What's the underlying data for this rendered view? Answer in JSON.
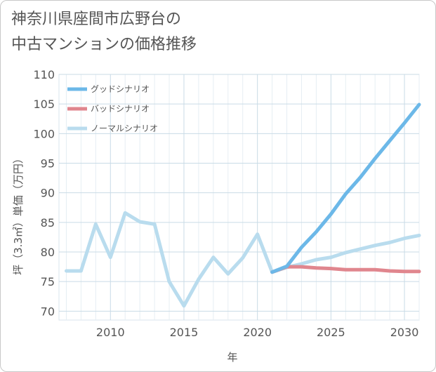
{
  "title_line1": "神奈川県座間市広野台の",
  "title_line2": "中古マンションの価格推移",
  "chart_data": {
    "type": "line",
    "xlabel": "年",
    "ylabel": "坪（3.3㎡）単価（万円）",
    "xlim": [
      2006.5,
      2031
    ],
    "ylim": [
      68.5,
      110
    ],
    "x_ticks": [
      2010,
      2015,
      2020,
      2025,
      2030
    ],
    "y_ticks": [
      70,
      75,
      80,
      85,
      90,
      95,
      100,
      105,
      110
    ],
    "grid": true,
    "legend_position": "top-left",
    "series": [
      {
        "name": "グッドシナリオ",
        "color": "#6cb8e8",
        "x": [
          2021,
          2022,
          2023,
          2024,
          2025,
          2026,
          2027,
          2028,
          2029,
          2030,
          2031
        ],
        "y": [
          76.6,
          77.6,
          80.8,
          83.4,
          86.4,
          89.8,
          92.6,
          95.8,
          98.8,
          101.8,
          104.9
        ]
      },
      {
        "name": "バッドシナリオ",
        "color": "#e0868e",
        "x": [
          2021,
          2022,
          2023,
          2024,
          2025,
          2026,
          2027,
          2028,
          2029,
          2030,
          2031
        ],
        "y": [
          76.6,
          77.5,
          77.5,
          77.3,
          77.2,
          77.0,
          77.0,
          77.0,
          76.8,
          76.7,
          76.7
        ]
      },
      {
        "name": "ノーマルシナリオ",
        "color": "#b9dcee",
        "x": [
          2007,
          2008,
          2009,
          2010,
          2011,
          2012,
          2013,
          2014,
          2015,
          2016,
          2017,
          2018,
          2019,
          2020,
          2021,
          2022,
          2023,
          2024,
          2025,
          2026,
          2027,
          2028,
          2029,
          2030,
          2031
        ],
        "y": [
          76.8,
          76.8,
          84.7,
          79.1,
          86.6,
          85.1,
          84.7,
          75.0,
          70.9,
          75.4,
          79.1,
          76.3,
          79.0,
          83.0,
          76.6,
          77.4,
          78.0,
          78.7,
          79.1,
          79.9,
          80.5,
          81.1,
          81.6,
          82.3,
          82.8
        ]
      }
    ]
  }
}
